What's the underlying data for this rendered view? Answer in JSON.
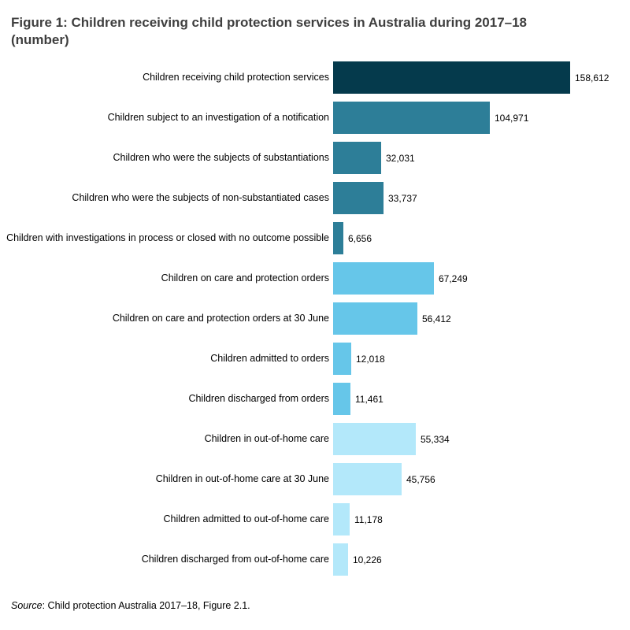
{
  "title": "Figure 1: Children receiving child protection services in Australia during 2017–18 (number)",
  "source": {
    "italic": "Source",
    "rest": ": Child protection Australia 2017–18, Figure 2.1."
  },
  "palette": {
    "darkest_teal": "#053a4c",
    "teal": "#2d7e98",
    "light_blue": "#66c6e9",
    "pale_blue": "#b3e8fa"
  },
  "chart_data": {
    "type": "bar",
    "orientation": "horizontal",
    "title": "Figure 1: Children receiving child protection services in Australia during 2017–18 (number)",
    "xlabel": "",
    "ylabel": "",
    "xlim": [
      0,
      158612
    ],
    "grid": false,
    "legend": false,
    "categories": [
      "Children receiving child protection services",
      "Children subject to an investigation of a notification",
      "Children who were the subjects of substantiations",
      "Children who were the subjects of non-substantiated cases",
      "Children with investigations in process or closed with no outcome possible",
      "Children on care and protection orders",
      "Children on care and protection orders at 30 June",
      "Children admitted to orders",
      "Children discharged from orders",
      "Children in out-of-home care",
      "Children in out-of-home care at 30 June",
      "Children admitted to out-of-home care",
      "Children discharged from out-of-home care"
    ],
    "values": [
      158612,
      104971,
      32031,
      33737,
      6656,
      67249,
      56412,
      12018,
      11461,
      55334,
      45756,
      11178,
      10226
    ],
    "value_labels": [
      "158,612",
      "104,971",
      "32,031",
      "33,737",
      "6,656",
      "67,249",
      "56,412",
      "12,018",
      "11,461",
      "55,334",
      "45,756",
      "11,178",
      "10,226"
    ],
    "bar_colors": [
      "#053a4c",
      "#2d7e98",
      "#2d7e98",
      "#2d7e98",
      "#2d7e98",
      "#66c6e9",
      "#66c6e9",
      "#66c6e9",
      "#66c6e9",
      "#b3e8fa",
      "#b3e8fa",
      "#b3e8fa",
      "#b3e8fa"
    ]
  }
}
